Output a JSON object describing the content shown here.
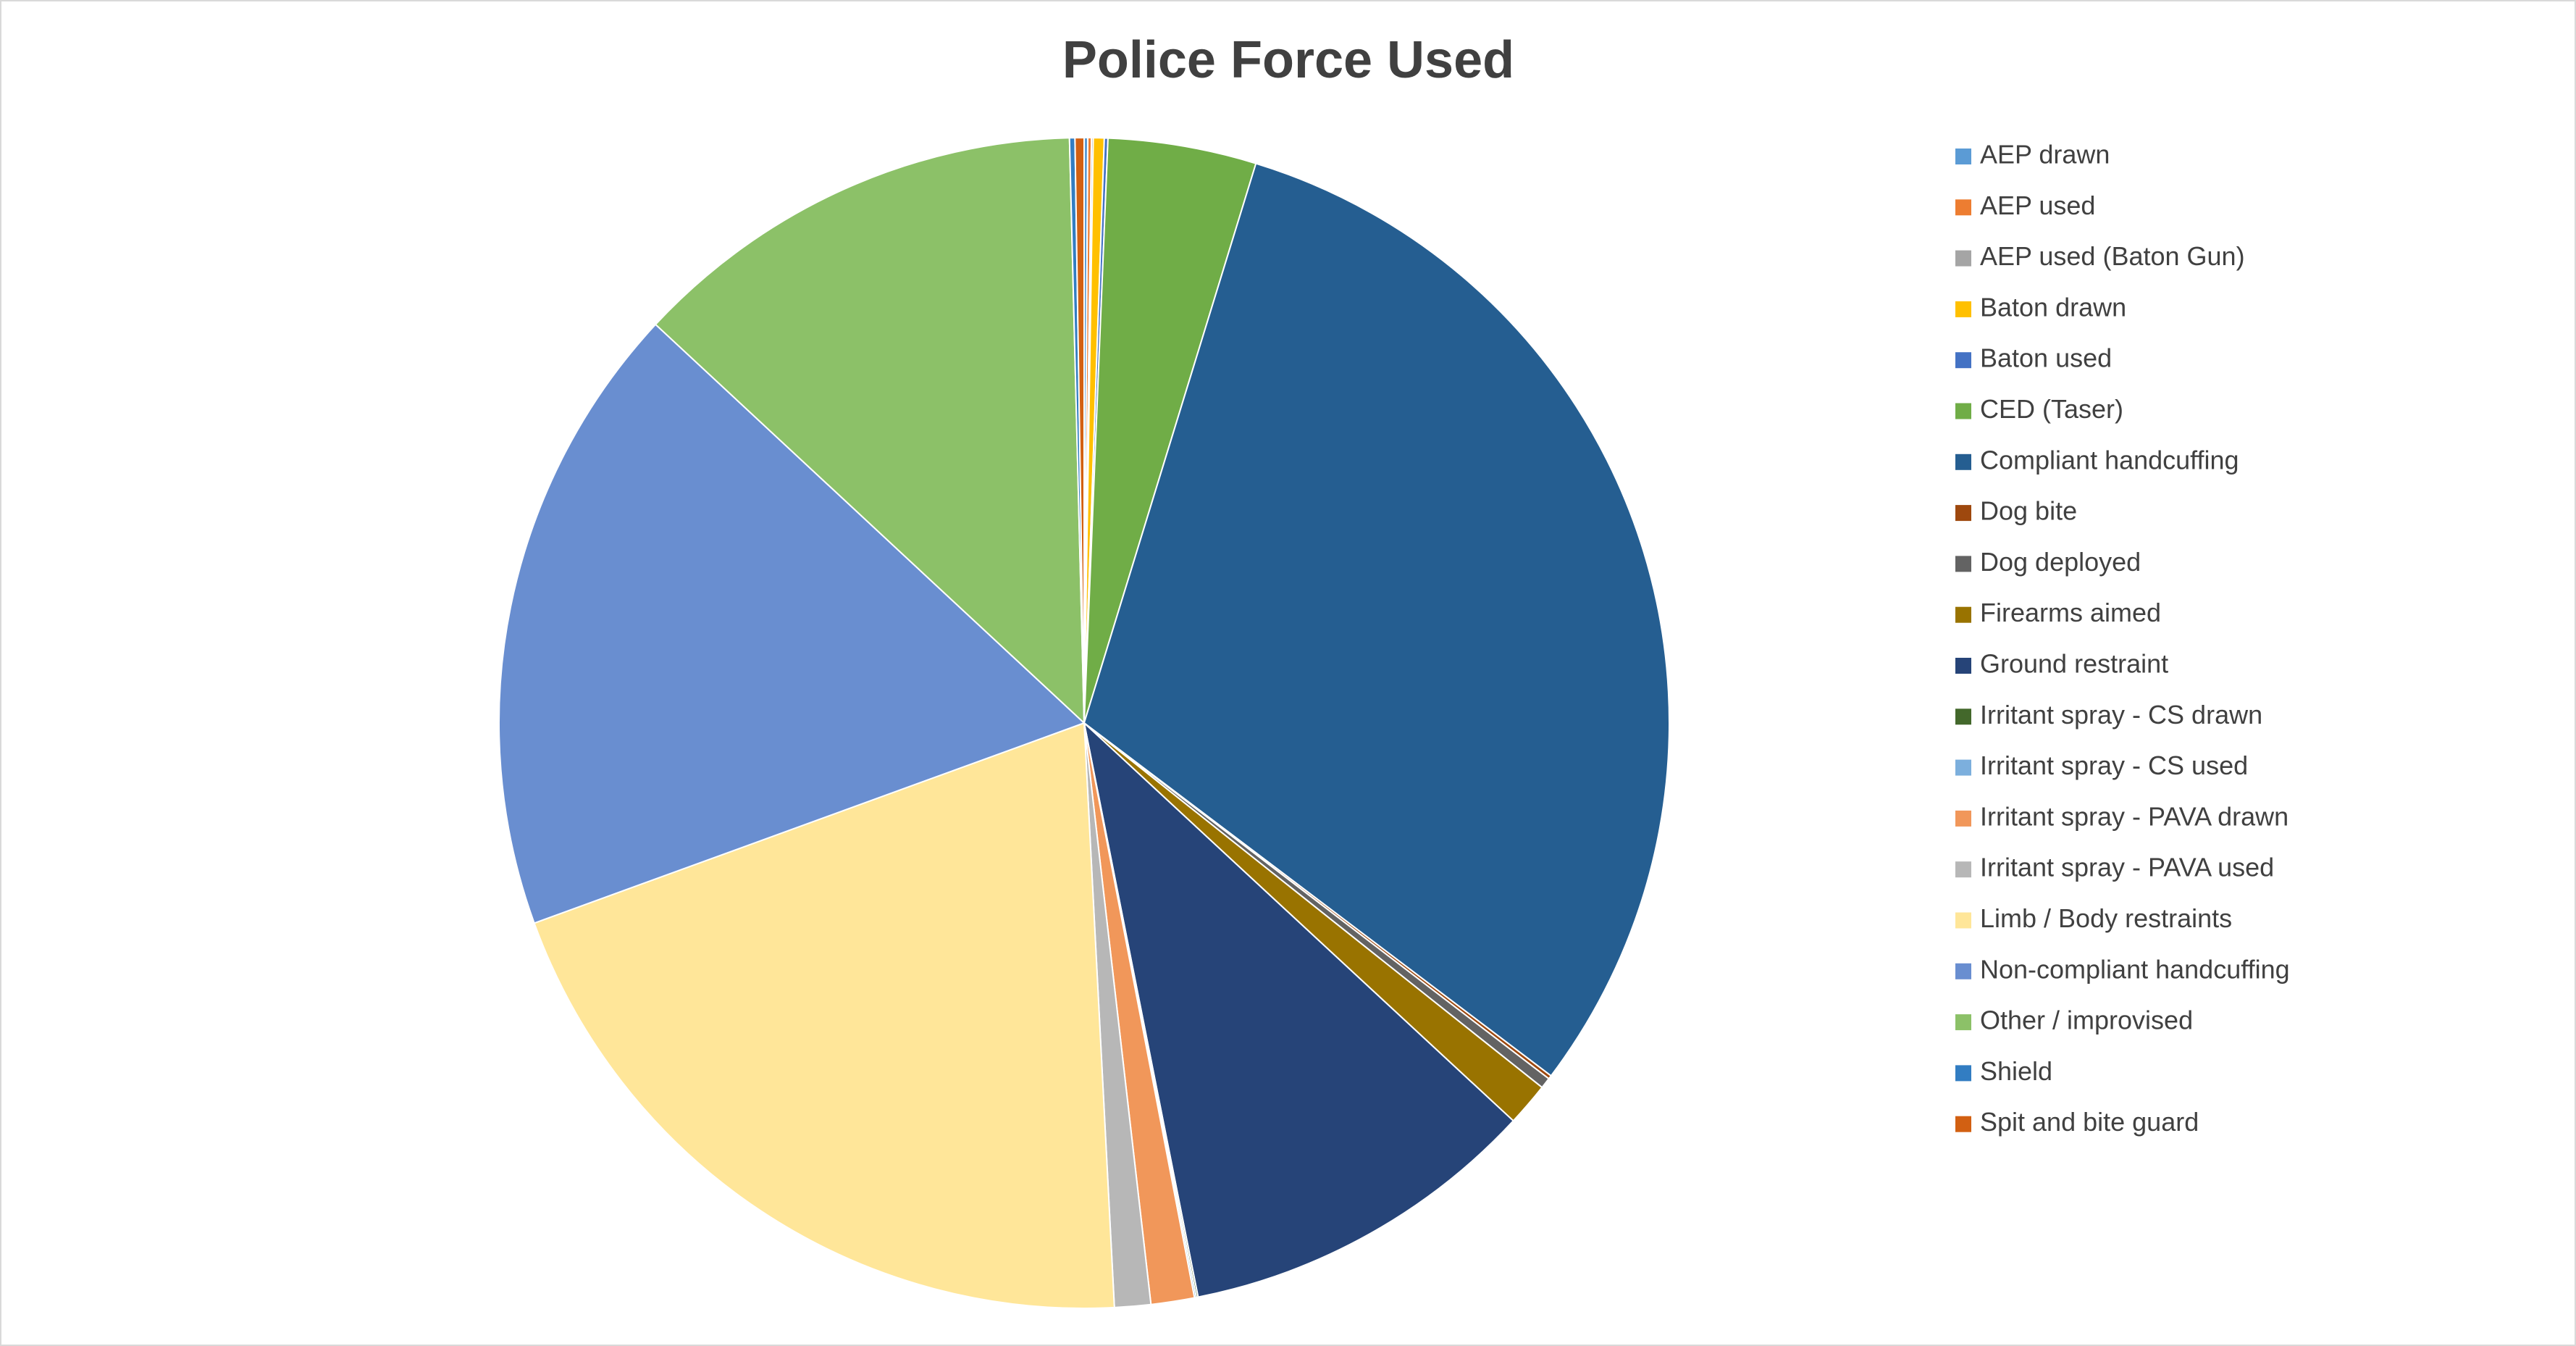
{
  "chart_data": {
    "type": "pie",
    "title": "Police Force Used",
    "categories": [
      "AEP drawn",
      "AEP used",
      "AEP used (Baton Gun)",
      "Baton drawn",
      "Baton used",
      "CED (Taser)",
      "Compliant handcuffing",
      "Dog bite",
      "Dog deployed",
      "Firearms aimed",
      "Ground restraint",
      "Irritant spray - CS drawn",
      "Irritant spray - CS used",
      "Irritant spray - PAVA drawn",
      "Irritant spray - PAVA used",
      "Limb / Body restraints",
      "Non-compliant handcuffing",
      "Other / improvised",
      "Shield",
      "Spit and bite guard"
    ],
    "values": [
      0.1,
      0.1,
      0.05,
      0.3,
      0.1,
      4.1,
      30.6,
      0.1,
      0.3,
      1.2,
      10.0,
      0.05,
      0.05,
      1.2,
      1.0,
      20.3,
      17.5,
      12.7,
      0.15,
      0.25
    ],
    "colors": [
      "#5B9BD5",
      "#ED7D31",
      "#A5A5A5",
      "#FFC000",
      "#4472C4",
      "#70AD47",
      "#255E91",
      "#9E480E",
      "#636363",
      "#997300",
      "#264478",
      "#43682B",
      "#7CAFDD",
      "#F1975A",
      "#B7B7B7",
      "#FFE699",
      "#698ED0",
      "#8CC168",
      "#327DC2",
      "#D26012"
    ],
    "legend": "right"
  }
}
